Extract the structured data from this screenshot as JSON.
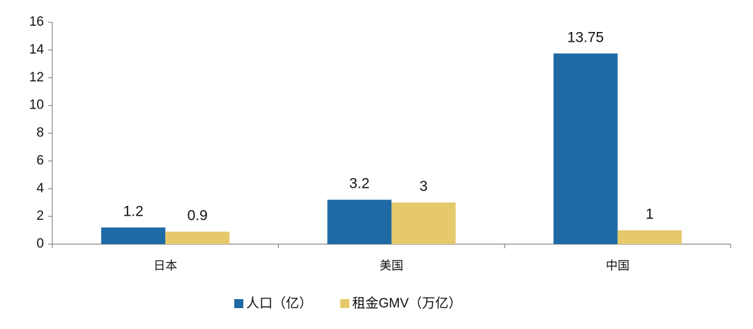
{
  "chart_data": {
    "type": "bar",
    "categories": [
      "日本",
      "美国",
      "中国"
    ],
    "series": [
      {
        "name": "人口（亿）",
        "color": "#1f6aa5",
        "values": [
          1.2,
          3.2,
          13.75
        ]
      },
      {
        "name": "租金GMV（万亿）",
        "color": "#e6c96b",
        "values": [
          0.9,
          3,
          1
        ]
      }
    ],
    "ylim": [
      0,
      16
    ],
    "yticks": [
      0,
      2,
      4,
      6,
      8,
      10,
      12,
      14,
      16
    ],
    "grid": false,
    "legend": "bottom"
  }
}
